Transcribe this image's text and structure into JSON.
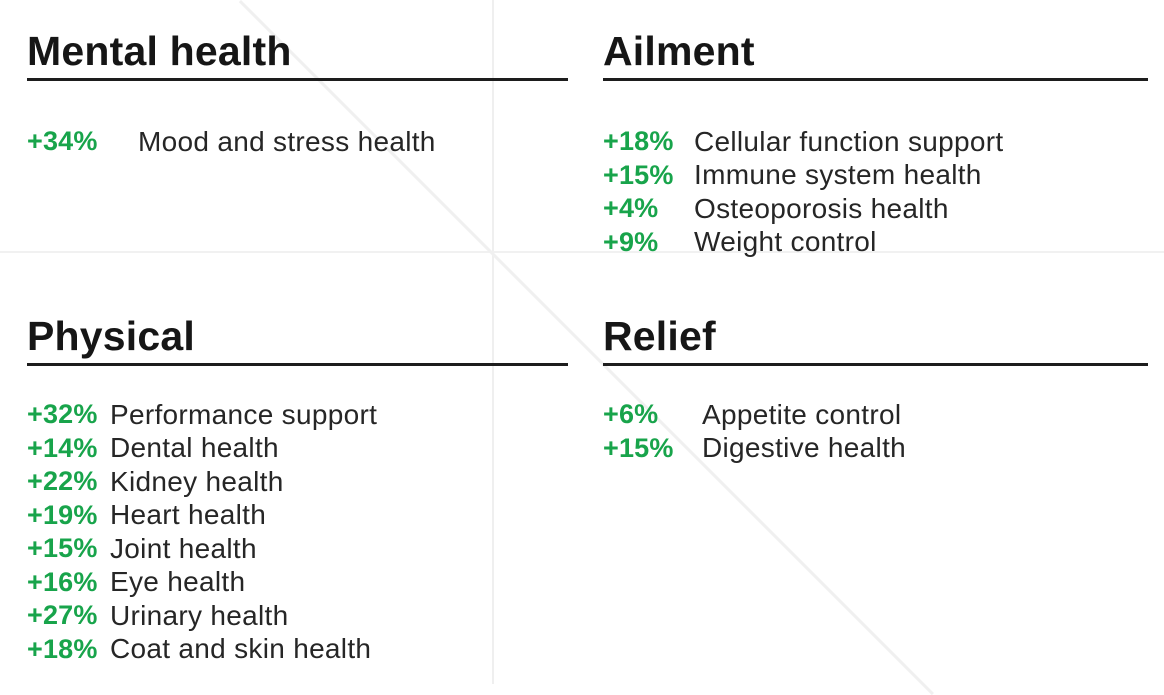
{
  "page": {
    "background": "#ffffff",
    "accent_green": "#18a44b",
    "heading_color": "#161616",
    "text_color": "#262626",
    "rule_color": "#1d1d1d",
    "divider_color": "#efefef"
  },
  "sections": [
    {
      "id": "mental-health",
      "title": "Mental health",
      "items": [
        {
          "delta": "+34%",
          "label": "Mood and stress health"
        }
      ]
    },
    {
      "id": "ailment",
      "title": "Ailment",
      "items": [
        {
          "delta": "+18%",
          "label": "Cellular function support"
        },
        {
          "delta": "+15%",
          "label": "Immune system health"
        },
        {
          "delta": "+4%",
          "label": "Osteoporosis health"
        },
        {
          "delta": "+9%",
          "label": "Weight control"
        }
      ]
    },
    {
      "id": "physical",
      "title": "Physical",
      "items": [
        {
          "delta": "+32%",
          "label": "Performance support"
        },
        {
          "delta": "+14%",
          "label": "Dental health"
        },
        {
          "delta": "+22%",
          "label": "Kidney health"
        },
        {
          "delta": "+19%",
          "label": "Heart health"
        },
        {
          "delta": "+15%",
          "label": "Joint health"
        },
        {
          "delta": "+16%",
          "label": "Eye health"
        },
        {
          "delta": "+27%",
          "label": "Urinary health"
        },
        {
          "delta": "+18%",
          "label": "Coat and skin health"
        }
      ]
    },
    {
      "id": "relief",
      "title": "Relief",
      "items": [
        {
          "delta": "+6%",
          "label": "Appetite control"
        },
        {
          "delta": "+15%",
          "label": "Digestive health"
        }
      ]
    }
  ]
}
